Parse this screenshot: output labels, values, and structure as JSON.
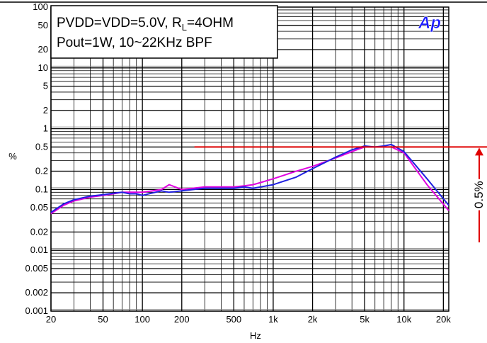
{
  "chart_data": {
    "type": "line",
    "annotation_line1": "PVDD=VDD=5.0V, R",
    "annotation_sub": "L",
    "annotation_line1_tail": "=4OHM",
    "annotation_line2": "Pout=1W, 10~22KHz BPF",
    "logo": "Ap",
    "xlabel": "Hz",
    "ylabel": "%",
    "x_scale": "log",
    "y_scale": "log",
    "xlim": [
      20,
      22000
    ],
    "ylim": [
      0.001,
      100
    ],
    "grid": true,
    "x_ticks": [
      {
        "value": 20,
        "label": "20"
      },
      {
        "value": 50,
        "label": "50"
      },
      {
        "value": 100,
        "label": "100"
      },
      {
        "value": 200,
        "label": "200"
      },
      {
        "value": 500,
        "label": "500"
      },
      {
        "value": 1000,
        "label": "1k"
      },
      {
        "value": 2000,
        "label": "2k"
      },
      {
        "value": 5000,
        "label": "5k"
      },
      {
        "value": 10000,
        "label": "10k"
      },
      {
        "value": 20000,
        "label": "20k"
      }
    ],
    "y_ticks": [
      {
        "value": 100,
        "label": "100"
      },
      {
        "value": 50,
        "label": "50"
      },
      {
        "value": 20,
        "label": "20"
      },
      {
        "value": 10,
        "label": "10"
      },
      {
        "value": 5,
        "label": "5"
      },
      {
        "value": 2,
        "label": "2"
      },
      {
        "value": 1,
        "label": "1"
      },
      {
        "value": 0.5,
        "label": "0.5"
      },
      {
        "value": 0.2,
        "label": "0.2"
      },
      {
        "value": 0.1,
        "label": "0.1"
      },
      {
        "value": 0.05,
        "label": "0.05"
      },
      {
        "value": 0.02,
        "label": "0.02"
      },
      {
        "value": 0.01,
        "label": "0.01"
      },
      {
        "value": 0.005,
        "label": "0.005"
      },
      {
        "value": 0.002,
        "label": "0.002"
      },
      {
        "value": 0.001,
        "label": "0.001"
      }
    ],
    "reference": {
      "value": 0.5,
      "x_start": 250,
      "label": "0.5%",
      "color": "#e00000"
    },
    "series": [
      {
        "color": "#e000e0",
        "x": [
          20,
          25,
          30,
          40,
          50,
          60,
          70,
          80,
          90,
          100,
          120,
          140,
          160,
          200,
          300,
          500,
          600,
          700,
          800,
          1000,
          1500,
          2000,
          3000,
          4000,
          5000,
          6000,
          7000,
          8000,
          10000,
          15000,
          22000
        ],
        "y": [
          0.04,
          0.055,
          0.065,
          0.075,
          0.08,
          0.085,
          0.09,
          0.09,
          0.09,
          0.09,
          0.095,
          0.1,
          0.12,
          0.1,
          0.11,
          0.11,
          0.115,
          0.12,
          0.13,
          0.15,
          0.2,
          0.24,
          0.33,
          0.42,
          0.5,
          0.5,
          0.5,
          0.5,
          0.4,
          0.12,
          0.045
        ]
      },
      {
        "color": "#2020e0",
        "x": [
          20,
          25,
          30,
          40,
          50,
          60,
          70,
          80,
          90,
          100,
          120,
          140,
          160,
          200,
          300,
          500,
          600,
          700,
          800,
          1000,
          1500,
          2000,
          3000,
          4000,
          5000,
          6000,
          7000,
          8000,
          10000,
          15000,
          22000
        ],
        "y": [
          0.042,
          0.058,
          0.068,
          0.078,
          0.082,
          0.087,
          0.09,
          0.085,
          0.085,
          0.08,
          0.088,
          0.095,
          0.09,
          0.095,
          0.105,
          0.105,
          0.11,
          0.105,
          0.11,
          0.12,
          0.16,
          0.22,
          0.34,
          0.45,
          0.52,
          0.5,
          0.52,
          0.55,
          0.42,
          0.15,
          0.055
        ]
      }
    ]
  }
}
